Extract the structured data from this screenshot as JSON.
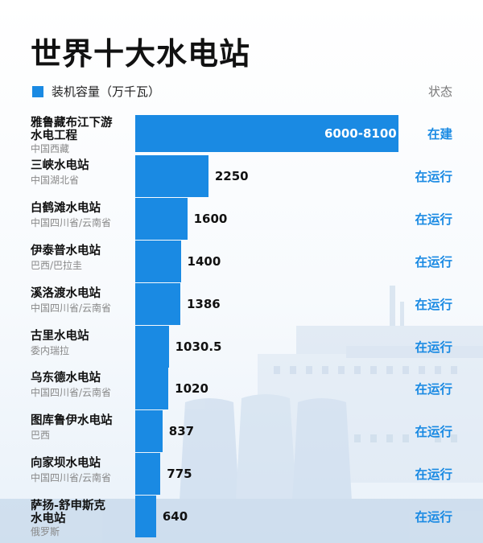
{
  "title": "世界十大水电站",
  "legend_label": "装机容量（万千瓦）",
  "status_header": "状态",
  "colors": {
    "bar": "#1a8ae3",
    "status": "#1a8ae3"
  },
  "chart_data": {
    "type": "bar",
    "orientation": "horizontal",
    "title": "世界十大水电站",
    "legend": [
      "装机容量（万千瓦）"
    ],
    "rows": [
      {
        "name_lines": [
          "雅鲁藏布江下游",
          "水电工程"
        ],
        "location": "中国西藏",
        "value_label": "6000-8100",
        "value": 8100,
        "status": "在建"
      },
      {
        "name_lines": [
          "三峡水电站"
        ],
        "location": "中国湖北省",
        "value_label": "2250",
        "value": 2250,
        "status": "在运行"
      },
      {
        "name_lines": [
          "白鹤滩水电站"
        ],
        "location": "中国四川省/云南省",
        "value_label": "1600",
        "value": 1600,
        "status": "在运行"
      },
      {
        "name_lines": [
          "伊泰普水电站"
        ],
        "location": "巴西/巴拉圭",
        "value_label": "1400",
        "value": 1400,
        "status": "在运行"
      },
      {
        "name_lines": [
          "溪洛渡水电站"
        ],
        "location": "中国四川省/云南省",
        "value_label": "1386",
        "value": 1386,
        "status": "在运行"
      },
      {
        "name_lines": [
          "古里水电站"
        ],
        "location": "委内瑞拉",
        "value_label": "1030.5",
        "value": 1030.5,
        "status": "在运行"
      },
      {
        "name_lines": [
          "乌东德水电站"
        ],
        "location": "中国四川省/云南省",
        "value_label": "1020",
        "value": 1020,
        "status": "在运行"
      },
      {
        "name_lines": [
          "图库鲁伊水电站"
        ],
        "location": "巴西",
        "value_label": "837",
        "value": 837,
        "status": "在运行"
      },
      {
        "name_lines": [
          "向家坝水电站"
        ],
        "location": "中国四川省/云南省",
        "value_label": "775",
        "value": 775,
        "status": "在运行"
      },
      {
        "name_lines": [
          "萨扬-舒申斯克",
          "水电站"
        ],
        "location": "俄罗斯",
        "value_label": "640",
        "value": 640,
        "status": "在运行"
      }
    ]
  }
}
